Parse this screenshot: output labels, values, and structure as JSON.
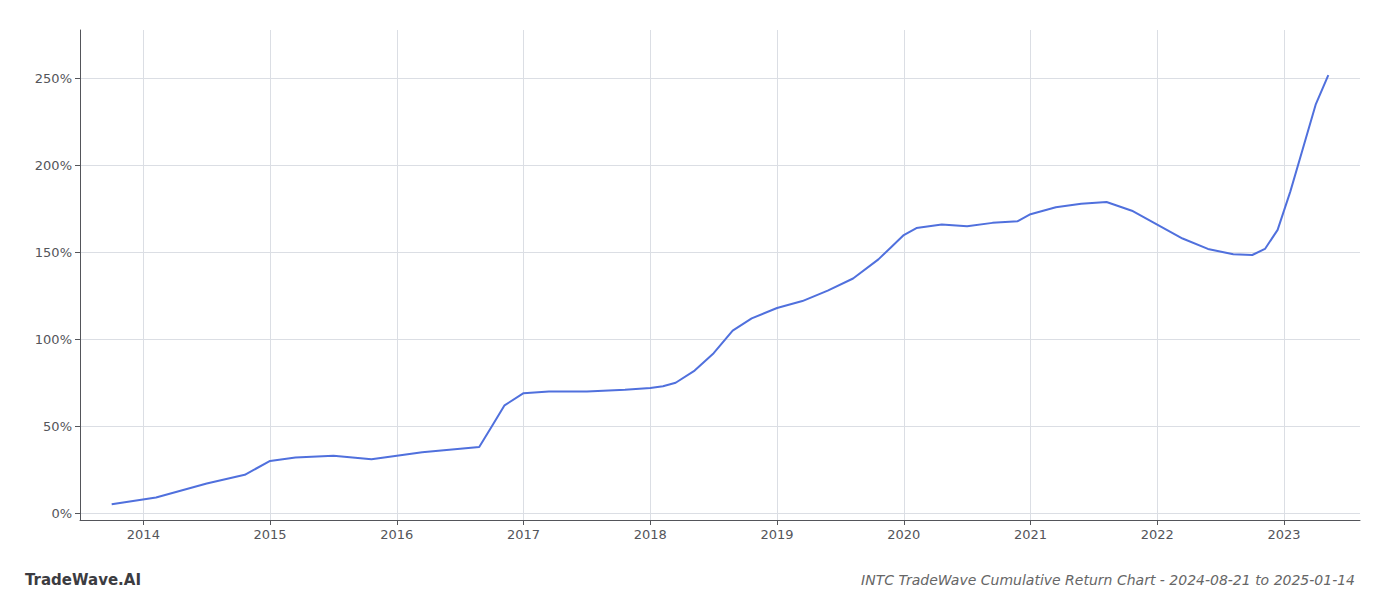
{
  "chart_data": {
    "type": "line",
    "title": "INTC TradeWave Cumulative Return Chart - 2024-08-21 to 2025-01-14",
    "annotations": [
      "TradeWave.AI"
    ],
    "x": [
      2013.75,
      2014.1,
      2014.5,
      2014.8,
      2015.0,
      2015.2,
      2015.5,
      2015.8,
      2016.0,
      2016.2,
      2016.5,
      2016.65,
      2016.75,
      2016.85,
      2017.0,
      2017.2,
      2017.5,
      2017.8,
      2018.0,
      2018.1,
      2018.2,
      2018.35,
      2018.5,
      2018.65,
      2018.8,
      2019.0,
      2019.2,
      2019.4,
      2019.6,
      2019.8,
      2019.9,
      2020.0,
      2020.1,
      2020.3,
      2020.5,
      2020.7,
      2020.9,
      2021.0,
      2021.2,
      2021.4,
      2021.6,
      2021.8,
      2022.0,
      2022.2,
      2022.4,
      2022.6,
      2022.75,
      2022.85,
      2022.95,
      2023.05,
      2023.15,
      2023.25,
      2023.35
    ],
    "values": [
      0.05,
      0.09,
      0.17,
      0.22,
      0.3,
      0.32,
      0.33,
      0.31,
      0.33,
      0.35,
      0.37,
      0.38,
      0.5,
      0.62,
      0.69,
      0.7,
      0.7,
      0.71,
      0.72,
      0.73,
      0.75,
      0.82,
      0.92,
      1.05,
      1.12,
      1.18,
      1.22,
      1.28,
      1.35,
      1.46,
      1.53,
      1.6,
      1.64,
      1.66,
      1.65,
      1.67,
      1.68,
      1.72,
      1.76,
      1.78,
      1.79,
      1.74,
      1.66,
      1.58,
      1.52,
      1.49,
      1.485,
      1.52,
      1.63,
      1.85,
      2.1,
      2.35,
      2.52
    ],
    "xlim": [
      2013.5,
      2023.6
    ],
    "xticks": [
      2014,
      2015,
      2016,
      2017,
      2018,
      2019,
      2020,
      2021,
      2022,
      2023
    ],
    "ylim": [
      -0.04,
      2.78
    ],
    "yticks": [
      {
        "value": 0,
        "label": "0%"
      },
      {
        "value": 0.5,
        "label": "50%"
      },
      {
        "value": 1.0,
        "label": "100%"
      },
      {
        "value": 1.5,
        "label": "150%"
      },
      {
        "value": 2.0,
        "label": "200%"
      },
      {
        "value": 2.5,
        "label": "250%"
      }
    ],
    "grid": true
  }
}
